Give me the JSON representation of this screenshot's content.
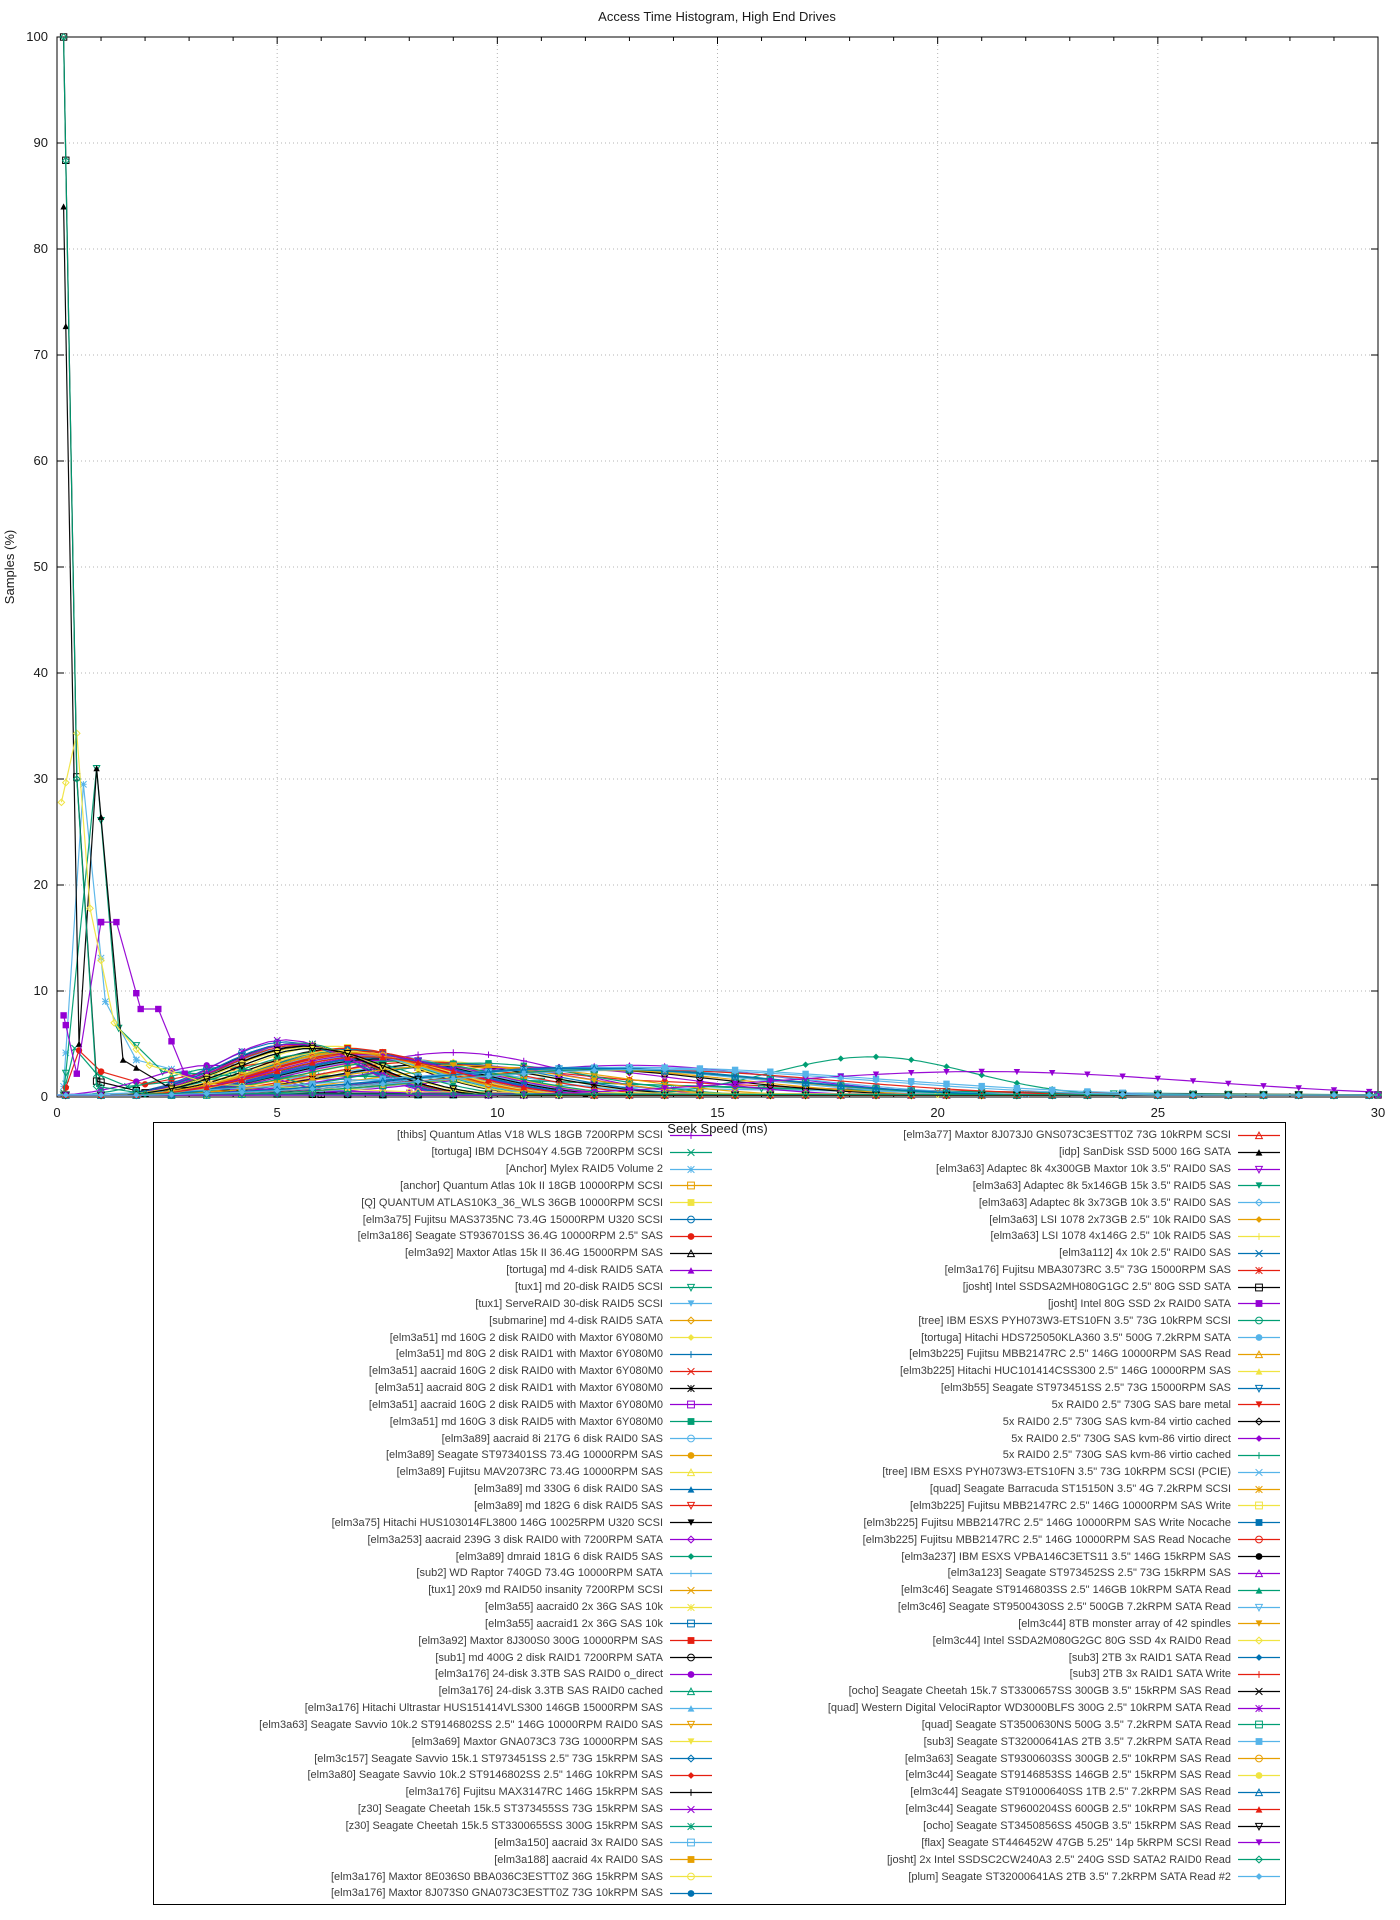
{
  "title": "Access Time Histogram, High End Drives",
  "chart_data": {
    "type": "line",
    "title": "Access Time Histogram, High End Drives",
    "xlabel": "Seek Speed (ms)",
    "ylabel": "Samples (%)",
    "xlim": [
      0,
      30
    ],
    "ylim": [
      0,
      100
    ],
    "x_ticks": [
      0,
      5,
      10,
      15,
      20,
      25,
      30
    ],
    "x_minor_step": 1,
    "y_ticks": [
      0,
      10,
      20,
      30,
      40,
      50,
      60,
      70,
      80,
      90,
      100
    ],
    "grid": true,
    "grid_color": "#b3b3b3",
    "legend_position": "below-two-columns",
    "legend_left_rows": 46,
    "palette": [
      "#9400d3",
      "#009e73",
      "#56b4e9",
      "#e69f00",
      "#f0e442",
      "#0072b2",
      "#e51e10",
      "#000000"
    ],
    "marker_cycle": [
      "plus",
      "cross",
      "star",
      "sqo",
      "sqf",
      "cio",
      "cif",
      "tuo",
      "tuf",
      "tdo",
      "tdf",
      "dio",
      "dif"
    ],
    "baseline": 0.18,
    "sample_step": 0.4,
    "series": [
      {
        "label": "[thibs] Quantum Atlas V18 WLS 18GB 7200RPM SCSI",
        "c": [
          9,
          4.2,
          3.5
        ]
      },
      {
        "label": "[tortuga] IBM DCHS04Y 4.5GB 7200RPM SCSI",
        "pts": [
          [
            0.15,
            0.4
          ],
          [
            0.4,
            4.6
          ],
          [
            0.9,
            2.2
          ],
          [
            1.6,
            1
          ],
          [
            3,
            1.6
          ],
          [
            6,
            2
          ],
          [
            9,
            1.8
          ],
          [
            13,
            1.2
          ],
          [
            20,
            0.5
          ],
          [
            30,
            0.2
          ]
        ]
      },
      {
        "label": "[Anchor] Mylex RAID5 Volume 2",
        "pts": [
          [
            0.15,
            1
          ],
          [
            0.6,
            29.5
          ],
          [
            1.1,
            9
          ],
          [
            1.8,
            3.5
          ],
          [
            3,
            2.2
          ],
          [
            5,
            1.8
          ],
          [
            9,
            1.4
          ],
          [
            14,
            0.8
          ],
          [
            22,
            0.3
          ],
          [
            30,
            0.2
          ]
        ]
      },
      {
        "label": "[anchor] Quantum Atlas 10k II 18GB 10000RPM SCSI",
        "c": [
          6.5,
          4.6,
          2.8
        ]
      },
      {
        "label": "[Q] QUANTUM ATLAS10K3_36_WLS 36GB 10000RPM SCSI",
        "c": [
          6.2,
          4.8,
          2.7
        ]
      },
      {
        "label": "[elm3a75] Fujitsu MAS3735NC 73.4G 15000RPM U320 SCSI",
        "c": [
          5.2,
          5.2,
          2.2
        ]
      },
      {
        "label": "[elm3a186] Seagate ST936701SS 36.4G 10000RPM 2.5\" SAS",
        "pts": [
          [
            0.15,
            0.3
          ],
          [
            0.5,
            4.4
          ],
          [
            1,
            2.4
          ],
          [
            2,
            1.2
          ],
          [
            4,
            2.8
          ],
          [
            6.5,
            4.2
          ],
          [
            9,
            3.2
          ],
          [
            13,
            1.6
          ],
          [
            18,
            0.7
          ],
          [
            25,
            0.3
          ],
          [
            30,
            0.2
          ]
        ]
      },
      {
        "label": "[elm3a92] Maxtor Atlas 15k II 36.4G 15000RPM SAS",
        "c": [
          5.4,
          5,
          2.3
        ]
      },
      {
        "label": "[tortuga] md 4-disk RAID5 SATA",
        "c": [
          13,
          3,
          5
        ]
      },
      {
        "label": "[tux1] md 20-disk RAID5 SCSI",
        "pts": [
          [
            0.15,
            0.2
          ],
          [
            0.9,
            31
          ],
          [
            1.4,
            6.5
          ],
          [
            2.4,
            2.4
          ],
          [
            4,
            2
          ],
          [
            7,
            2
          ],
          [
            11,
            1.5
          ],
          [
            16,
            0.8
          ],
          [
            24,
            0.3
          ],
          [
            30,
            0.2
          ]
        ]
      },
      {
        "label": "[tux1] ServeRAID 30-disk RAID5 SCSI",
        "c": [
          8,
          2.8,
          4
        ]
      },
      {
        "label": "[submarine] md 4-disk RAID5 SATA",
        "c": [
          12,
          2.6,
          5
        ]
      },
      {
        "label": "[elm3a51] md 160G 2 disk RAID0 with Maxtor 6Y080M0",
        "c": [
          8.5,
          3.4,
          3.5
        ]
      },
      {
        "label": "[elm3a51] md 80G 2 disk RAID1 with Maxtor 6Y080M0",
        "c": [
          8.8,
          3.2,
          3.6
        ]
      },
      {
        "label": "[elm3a51] aacraid 160G 2 disk RAID0 with Maxtor 6Y080M0",
        "c": [
          8.2,
          3.3,
          3.4
        ]
      },
      {
        "label": "[elm3a51] aacraid 80G 2 disk RAID1 with Maxtor 6Y080M0",
        "c": [
          8.6,
          3.1,
          3.6
        ]
      },
      {
        "label": "[elm3a51] aacraid 160G 2 disk RAID5 with Maxtor 6Y080M0",
        "c": [
          9.2,
          3,
          3.8
        ]
      },
      {
        "label": "[elm3a51] md 160G 3 disk RAID5 with Maxtor 6Y080M0",
        "c": [
          9.5,
          3.2,
          3.8
        ]
      },
      {
        "label": "[elm3a89] aacraid 8i 217G 6 disk RAID0 SAS",
        "c": [
          6.8,
          4,
          2.8
        ]
      },
      {
        "label": "[elm3a89] Seagate ST973401SS 73.4G 10000RPM SAS",
        "c": [
          6.4,
          4.4,
          2.6
        ]
      },
      {
        "label": "[elm3a89] Fujitsu MAV2073RC 73.4G 10000RPM SAS",
        "c": [
          6.6,
          4.2,
          2.7
        ]
      },
      {
        "label": "[elm3a89] md 330G 6 disk RAID0 SAS",
        "c": [
          7,
          3.8,
          3
        ]
      },
      {
        "label": "[elm3a89] md 182G 6 disk RAID5 SAS",
        "c": [
          7.4,
          3.5,
          3.2
        ]
      },
      {
        "label": "[elm3a75] Hitachi HUS103014FL3800 146G 10025RPM U320 SCSI",
        "c": [
          6.3,
          4.5,
          2.6
        ]
      },
      {
        "label": "[elm3a253] aacraid 239G 3 disk RAID0 with 7200RPM SATA",
        "c": [
          11,
          2.8,
          4.5
        ]
      },
      {
        "label": "[elm3a89] dmraid 181G 6 disk RAID5 SAS",
        "c": [
          18.5,
          3.8,
          3.2
        ]
      },
      {
        "label": "[sub2] WD Raptor 740GD 73.4G 10000RPM SATA",
        "c": [
          7.2,
          4,
          3
        ]
      },
      {
        "label": "[tux1] 20x9 md RAID50 insanity 7200RPM SCSI",
        "c": [
          10,
          2.8,
          4.2
        ]
      },
      {
        "label": "[elm3a55] aacraid0 2x 36G SAS 10k",
        "c": [
          6.9,
          4,
          2.9
        ]
      },
      {
        "label": "[elm3a55] aacraid1 2x 36G SAS 10k",
        "c": [
          7.1,
          3.9,
          2.9
        ]
      },
      {
        "label": "[elm3a92] Maxtor 8J300S0 300G 10000RPM SAS",
        "c": [
          6.6,
          4.6,
          2.7
        ]
      },
      {
        "label": "[sub1] md 400G 2 disk RAID1 7200RPM SATA",
        "c": [
          11.5,
          2.7,
          5
        ]
      },
      {
        "label": "[elm3a176] 24-disk 3.3TB SAS RAID0 o_direct",
        "c": [
          3.5,
          3,
          2
        ]
      },
      {
        "label": "[elm3a176] 24-disk 3.3TB SAS RAID0 cached",
        "c": [
          3.8,
          2.8,
          2
        ]
      },
      {
        "label": "[elm3a176] Hitachi Ultrastar HUS151414VLS300 146GB 15000RPM SAS",
        "c": [
          5.5,
          4.8,
          2.3
        ]
      },
      {
        "label": "[elm3a63] Seagate Savvio 10k.2 ST9146802SS 2.5\" 146G 10000RPM RAID0 SAS",
        "c": [
          6.8,
          4.1,
          2.8
        ]
      },
      {
        "label": "[elm3a69] Maxtor GNA073C3 73G 10000RPM SAS",
        "c": [
          6.5,
          4.3,
          2.7
        ]
      },
      {
        "label": "[elm3c157] Seagate Savvio 15k.1 ST973451SS 2.5\" 73G 15kRPM SAS",
        "c": [
          5.3,
          5,
          2.2
        ]
      },
      {
        "label": "[elm3a80] Seagate Savvio 10k.2 ST9146802SS 2.5\" 146G 10kRPM SAS",
        "c": [
          6.7,
          4.4,
          2.7
        ]
      },
      {
        "label": "[elm3a176] Fujitsu MAX3147RC 146G 15kRPM SAS",
        "c": [
          5.6,
          4.7,
          2.3
        ]
      },
      {
        "label": "[z30] Seagate Cheetah 15k.5 ST373455SS 73G 15kRPM SAS",
        "c": [
          5.2,
          5.4,
          2.1
        ]
      },
      {
        "label": "[z30] Seagate Cheetah 15k.5 ST3300655SS 300G 15kRPM SAS",
        "c": [
          5.5,
          5.1,
          2.2
        ]
      },
      {
        "label": "[elm3a150] aacraid 3x RAID0 SAS",
        "c": [
          7.5,
          3.6,
          3.1
        ]
      },
      {
        "label": "[elm3a188] aacraid 4x RAID0 SAS",
        "c": [
          7.8,
          3.4,
          3.2
        ]
      },
      {
        "label": "[elm3a176] Maxtor 8E036S0 BBA036C3ESTT0Z 36G 15kRPM SAS",
        "c": [
          5.4,
          5,
          2.2
        ]
      },
      {
        "label": "[elm3a176] Maxtor 8J073S0 GNA073C3ESTT0Z 73G 10kRPM SAS",
        "c": [
          6.6,
          4.5,
          2.7
        ]
      },
      {
        "label": "[elm3a77] Maxtor 8J073J0 GNS073C3ESTT0Z 73G 10kRPM SCSI",
        "c": [
          6.9,
          4.3,
          2.8
        ]
      },
      {
        "label": "[idp] SanDisk SSD 5000 16G SATA",
        "pts": [
          [
            0.15,
            84
          ],
          [
            0.5,
            5
          ],
          [
            0.9,
            31
          ],
          [
            1.5,
            3.5
          ],
          [
            2.5,
            1
          ],
          [
            5,
            0.4
          ],
          [
            12,
            0.25
          ],
          [
            30,
            0.2
          ]
        ]
      },
      {
        "label": "[elm3a63] Adaptec 8k 4x300GB Maxtor 10k 3.5\" RAID0 SAS",
        "c": [
          7.2,
          3.8,
          3
        ]
      },
      {
        "label": "[elm3a63] Adaptec 8k 5x146GB 15k 3.5\" RAID5 SAS",
        "c": [
          6,
          4.2,
          2.6
        ]
      },
      {
        "label": "[elm3a63] Adaptec 8k 3x73GB 10k 3.5\" RAID0 SAS",
        "c": [
          6.9,
          3.9,
          2.9
        ]
      },
      {
        "label": "[elm3a63] LSI 1078 2x73GB 2.5\" 10k RAID0 SAS",
        "c": [
          7,
          3.8,
          3
        ]
      },
      {
        "label": "[elm3a63] LSI 1078 4x146G 2.5\" 10k RAID5 SAS",
        "c": [
          7.6,
          3.4,
          3.3
        ]
      },
      {
        "label": "[elm3a112] 4x 10k 2.5\" RAID0 SAS",
        "c": [
          7.2,
          3.7,
          3
        ]
      },
      {
        "label": "[elm3a176] Fujitsu MBA3073RC 3.5\" 73G 15000RPM SAS",
        "c": [
          5.5,
          4.9,
          2.3
        ]
      },
      {
        "label": "[josht] Intel SSDSA2MH080G1GC 2.5\" 80G SSD SATA",
        "pts": [
          [
            0.15,
            100
          ],
          [
            0.45,
            30.2
          ],
          [
            0.9,
            1.5
          ],
          [
            2,
            0.4
          ],
          [
            6,
            0.25
          ],
          [
            30,
            0.2
          ]
        ]
      },
      {
        "label": "[josht] Intel 80G SSD 2x RAID0 SATA",
        "pts": [
          [
            0.15,
            7.7
          ],
          [
            0.45,
            2.2
          ],
          [
            1,
            16.5
          ],
          [
            1.35,
            16.5
          ],
          [
            1.9,
            8.3
          ],
          [
            2.3,
            8.3
          ],
          [
            2.9,
            2.2
          ],
          [
            4,
            0.8
          ],
          [
            8,
            0.4
          ],
          [
            30,
            0.2
          ]
        ]
      },
      {
        "label": "[tree] IBM ESXS PYH073W3-ETS10FN 3.5\" 73G 10kRPM SCSI",
        "c": [
          6.5,
          4.2,
          2.7
        ]
      },
      {
        "label": "[tortuga] Hitachi HDS725050KLA360 3.5\" 500G 7.2kRPM SATA",
        "c": [
          13,
          2.8,
          5.5
        ]
      },
      {
        "label": "[elm3b225] Fujitsu MBB2147RC 2.5\" 146G 10000RPM SAS Read",
        "c": [
          6.6,
          4.3,
          2.7
        ]
      },
      {
        "label": "[elm3b225] Hitachi HUC101414CSS300 2.5\" 146G 10000RPM SAS",
        "c": [
          6.4,
          4.4,
          2.6
        ]
      },
      {
        "label": "[elm3b55] Seagate ST973451SS 2.5\" 73G 15000RPM SAS",
        "c": [
          5.3,
          5,
          2.2
        ]
      },
      {
        "label": "5x RAID0 2.5\" 730G SAS bare metal",
        "c": [
          6.8,
          4,
          2.9
        ]
      },
      {
        "label": "5x RAID0 2.5\" 730G SAS kvm-84 virtio cached",
        "c": [
          7.4,
          3.6,
          3.1
        ]
      },
      {
        "label": "5x RAID0 2.5\" 730G SAS kvm-86 virtio direct",
        "c": [
          7.6,
          3.5,
          3.2
        ]
      },
      {
        "label": "5x RAID0 2.5\" 730G SAS kvm-86 virtio cached",
        "c": [
          7.8,
          3.4,
          3.3
        ]
      },
      {
        "label": "[tree] IBM ESXS PYH073W3-ETS10FN 3.5\" 73G 10kRPM SCSI (PCIE)",
        "c": [
          6.6,
          4.1,
          2.7
        ]
      },
      {
        "label": "[quad] Seagate Barracuda ST15150N 3.5\" 4G 7.2kRPM SCSI",
        "c": [
          12.5,
          2.5,
          5.5
        ]
      },
      {
        "label": "[elm3b225] Fujitsu MBB2147RC 2.5\" 146G 10000RPM SAS Write",
        "c": [
          6.9,
          4,
          2.8
        ]
      },
      {
        "label": "[elm3b225] Fujitsu MBB2147RC 2.5\" 146G 10000RPM SAS Write Nocache",
        "c": [
          7.3,
          3.7,
          3
        ]
      },
      {
        "label": "[elm3b225] Fujitsu MBB2147RC 2.5\" 146G 10000RPM SAS Read Nocache",
        "c": [
          6.7,
          4.1,
          2.8
        ]
      },
      {
        "label": "[elm3a237] IBM ESXS VPBA146C3ETS11 3.5\" 146G 15kRPM SAS",
        "c": [
          5.6,
          4.8,
          2.3
        ]
      },
      {
        "label": "[elm3a123] Seagate ST973452SS 2.5\" 73G 15kRPM SAS",
        "c": [
          5.4,
          5,
          2.2
        ]
      },
      {
        "label": "[elm3c46] Seagate ST9146803SS 2.5\" 146GB 10kRPM SATA Read",
        "c": [
          5.8,
          4.6,
          2.4
        ]
      },
      {
        "label": "[elm3c46] Seagate ST9500430SS 2.5\" 500GB 7.2kRPM SATA Read",
        "c": [
          12,
          2.7,
          5.5
        ]
      },
      {
        "label": "[elm3c44] 8TB monster array of 42 spindles",
        "c": [
          9,
          3,
          4
        ]
      },
      {
        "label": "[elm3c44] Intel SSDA2M080G2GC 80G SSD 4x RAID0 Read",
        "pts": [
          [
            0.1,
            27.8
          ],
          [
            0.45,
            34.3
          ],
          [
            0.75,
            17.8
          ],
          [
            1.3,
            7
          ],
          [
            2.1,
            3
          ],
          [
            3.5,
            1.2
          ],
          [
            8,
            0.5
          ],
          [
            20,
            0.25
          ],
          [
            30,
            0.2
          ]
        ]
      },
      {
        "label": "[sub3] 2TB 3x RAID1 SATA Read",
        "c": [
          12,
          2.8,
          6
        ]
      },
      {
        "label": "[sub3] 2TB 3x RAID1 SATA Write",
        "c": [
          13,
          2.6,
          6.5
        ]
      },
      {
        "label": "[ocho] Seagate Cheetah 15k.7 ST3300657SS 300GB 3.5\" 15kRPM SAS Read",
        "c": [
          5.6,
          4.8,
          2.3
        ]
      },
      {
        "label": "[quad] Western Digital VelociRaptor WD3000BLFS 300G 2.5\" 10kRPM SATA Read",
        "c": [
          7,
          4,
          3
        ]
      },
      {
        "label": "[quad] Seagate ST3500630NS 500G 3.5\" 7.2kRPM SATA Read",
        "c": [
          12.5,
          2.6,
          5.5
        ]
      },
      {
        "label": "[sub3] Seagate ST32000641AS 2TB 3.5\" 7.2kRPM SATA Read",
        "c": [
          13,
          2.8,
          8
        ]
      },
      {
        "label": "[elm3a63] Seagate ST9300603SS 300GB 2.5\" 10kRPM SAS Read",
        "c": [
          6.6,
          4.2,
          2.8
        ]
      },
      {
        "label": "[elm3c44] Seagate ST9146853SS 146GB 2.5\" 15kRPM SAS Read",
        "c": [
          5.7,
          4.7,
          2.4
        ]
      },
      {
        "label": "[elm3c44] Seagate ST91000640SS 1TB 2.5\" 7.2kRPM SAS Read",
        "c": [
          12,
          2.7,
          6
        ]
      },
      {
        "label": "[elm3c44] Seagate ST9600204SS 600GB 2.5\" 10kRPM SAS Read",
        "c": [
          7,
          3.8,
          3
        ]
      },
      {
        "label": "[ocho] Seagate ST3450856SS 450GB 3.5\" 15kRPM SAS Read",
        "c": [
          5.8,
          4.6,
          2.4
        ]
      },
      {
        "label": "[flax] Seagate ST446452W 47GB 5.25\" 14p 5kRPM SCSI Read",
        "c": [
          21,
          2.4,
          7
        ]
      },
      {
        "label": "[josht] 2x Intel SSDSC2CW240A3 2.5\" 240G SSD SATA2 RAID0 Read",
        "pts": [
          [
            0.15,
            100
          ],
          [
            0.45,
            30
          ],
          [
            0.9,
            1
          ],
          [
            2,
            0.3
          ],
          [
            30,
            0.2
          ]
        ]
      },
      {
        "label": "[plum] Seagate ST32000641AS 2TB 3.5\" 7.2kRPM SATA Read #2",
        "c": [
          13.5,
          2.6,
          7
        ]
      }
    ]
  }
}
